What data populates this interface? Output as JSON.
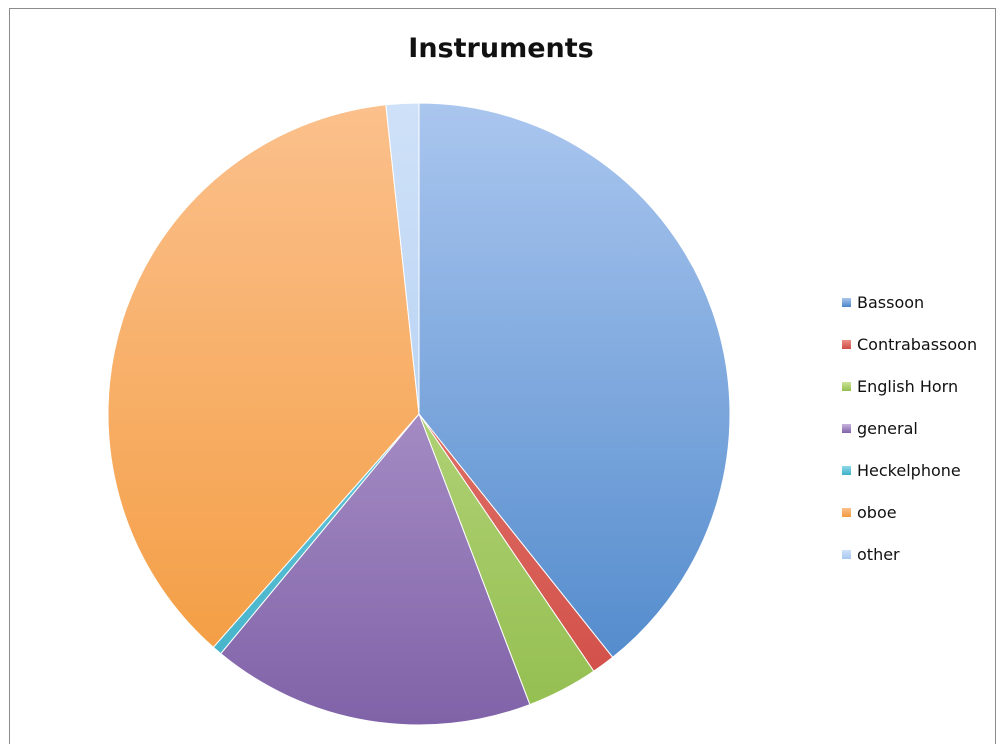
{
  "chart_data": {
    "type": "pie",
    "title": "Instruments",
    "legend_position": "right",
    "series": [
      {
        "name": "Bassoon",
        "value": 39.3,
        "color": "#4a85c9",
        "light": "#aac6ef"
      },
      {
        "name": "Contrabassoon",
        "value": 1.2,
        "color": "#d04c45",
        "light": "#ec8f85"
      },
      {
        "name": "English Horn",
        "value": 3.7,
        "color": "#93be4f",
        "light": "#cbe49a"
      },
      {
        "name": "general",
        "value": 16.8,
        "color": "#8062a8",
        "light": "#c8b4de"
      },
      {
        "name": "Heckelphone",
        "value": 0.5,
        "color": "#3eb0c8",
        "light": "#8fd9e7"
      },
      {
        "name": "oboe",
        "value": 36.8,
        "color": "#f39a3c",
        "light": "#fbc08c"
      },
      {
        "name": "other",
        "value": 1.7,
        "color": "#a6c8f0",
        "light": "#cfe1f8"
      }
    ]
  }
}
